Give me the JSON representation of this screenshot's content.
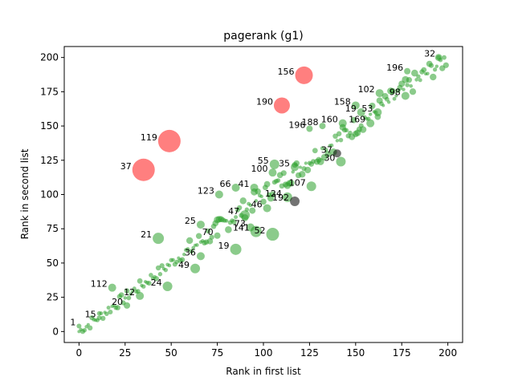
{
  "chart_data": {
    "type": "scatter",
    "title": "pagerank (g1)",
    "xlabel": "Rank in first list",
    "ylabel": "Rank in second list",
    "xlim": [
      -8,
      208
    ],
    "ylim": [
      -8,
      208
    ],
    "xticks": [
      0,
      25,
      50,
      75,
      100,
      125,
      150,
      175,
      200
    ],
    "yticks": [
      0,
      25,
      50,
      75,
      100,
      125,
      150,
      175,
      200
    ],
    "grid": false,
    "colors": {
      "agree": "#2ca02c",
      "outlier": "#ff0000",
      "neutral": "#000000"
    },
    "labeled_points": [
      {
        "label": "156",
        "x": 122,
        "y": 187,
        "size": 11,
        "color": "outlier"
      },
      {
        "label": "190",
        "x": 110,
        "y": 165,
        "size": 10,
        "color": "outlier"
      },
      {
        "label": "119",
        "x": 49,
        "y": 139,
        "size": 14,
        "color": "outlier"
      },
      {
        "label": "37",
        "x": 35,
        "y": 118,
        "size": 14,
        "color": "outlier"
      },
      {
        "label": "21",
        "x": 43,
        "y": 68,
        "size": 7,
        "color": "agree"
      },
      {
        "label": "19",
        "x": 85,
        "y": 60,
        "size": 7,
        "color": "agree"
      },
      {
        "label": "52",
        "x": 105,
        "y": 71,
        "size": 8,
        "color": "agree"
      },
      {
        "label": "141",
        "x": 96,
        "y": 73,
        "size": 7,
        "color": "agree"
      },
      {
        "label": "124",
        "x": 113,
        "y": 98,
        "size": 6,
        "color": "agree"
      },
      {
        "label": "192",
        "x": 117,
        "y": 95,
        "size": 6,
        "color": "neutral"
      },
      {
        "label": "107",
        "x": 126,
        "y": 106,
        "size": 6,
        "color": "agree"
      },
      {
        "label": "55",
        "x": 106,
        "y": 122,
        "size": 6,
        "color": "agree"
      },
      {
        "label": "100",
        "x": 105,
        "y": 116,
        "size": 5,
        "color": "agree"
      },
      {
        "label": "35",
        "x": 117,
        "y": 120,
        "size": 5,
        "color": "agree"
      },
      {
        "label": "30",
        "x": 142,
        "y": 124,
        "size": 6,
        "color": "agree"
      },
      {
        "label": "37",
        "x": 140,
        "y": 130,
        "size": 5,
        "color": "neutral"
      },
      {
        "label": "196",
        "x": 125,
        "y": 148,
        "size": 4,
        "color": "agree"
      },
      {
        "label": "188",
        "x": 132,
        "y": 150,
        "size": 4,
        "color": "agree"
      },
      {
        "label": "160",
        "x": 143,
        "y": 152,
        "size": 5,
        "color": "agree"
      },
      {
        "label": "158",
        "x": 150,
        "y": 165,
        "size": 5,
        "color": "agree"
      },
      {
        "label": "19",
        "x": 153,
        "y": 160,
        "size": 5,
        "color": "agree"
      },
      {
        "label": "53",
        "x": 162,
        "y": 160,
        "size": 5,
        "color": "agree"
      },
      {
        "label": "169",
        "x": 158,
        "y": 152,
        "size": 5,
        "color": "agree"
      },
      {
        "label": "102",
        "x": 163,
        "y": 174,
        "size": 5,
        "color": "agree"
      },
      {
        "label": "98",
        "x": 177,
        "y": 172,
        "size": 5,
        "color": "agree"
      },
      {
        "label": "196",
        "x": 178,
        "y": 190,
        "size": 4,
        "color": "agree"
      },
      {
        "label": "32",
        "x": 195,
        "y": 200,
        "size": 3,
        "color": "agree"
      },
      {
        "label": "123",
        "x": 76,
        "y": 100,
        "size": 5,
        "color": "agree"
      },
      {
        "label": "66",
        "x": 85,
        "y": 105,
        "size": 5,
        "color": "agree"
      },
      {
        "label": "41",
        "x": 95,
        "y": 105,
        "size": 5,
        "color": "agree"
      },
      {
        "label": "46",
        "x": 102,
        "y": 90,
        "size": 5,
        "color": "agree"
      },
      {
        "label": "47",
        "x": 90,
        "y": 85,
        "size": 6,
        "color": "agree"
      },
      {
        "label": "25",
        "x": 66,
        "y": 78,
        "size": 5,
        "color": "agree"
      },
      {
        "label": "70",
        "x": 75,
        "y": 70,
        "size": 4,
        "color": "agree"
      },
      {
        "label": "73",
        "x": 93,
        "y": 76,
        "size": 5,
        "color": "agree"
      },
      {
        "label": "112",
        "x": 18,
        "y": 32,
        "size": 5,
        "color": "agree"
      },
      {
        "label": "24",
        "x": 48,
        "y": 33,
        "size": 6,
        "color": "agree"
      },
      {
        "label": "49",
        "x": 63,
        "y": 46,
        "size": 6,
        "color": "agree"
      },
      {
        "label": "36",
        "x": 66,
        "y": 55,
        "size": 5,
        "color": "agree"
      },
      {
        "label": "12",
        "x": 33,
        "y": 26,
        "size": 5,
        "color": "agree"
      },
      {
        "label": "20",
        "x": 26,
        "y": 19,
        "size": 4,
        "color": "agree"
      },
      {
        "label": "15",
        "x": 11,
        "y": 10,
        "size": 3,
        "color": "agree"
      },
      {
        "label": "1",
        "x": 0,
        "y": 4,
        "size": 3,
        "color": "agree"
      }
    ]
  }
}
